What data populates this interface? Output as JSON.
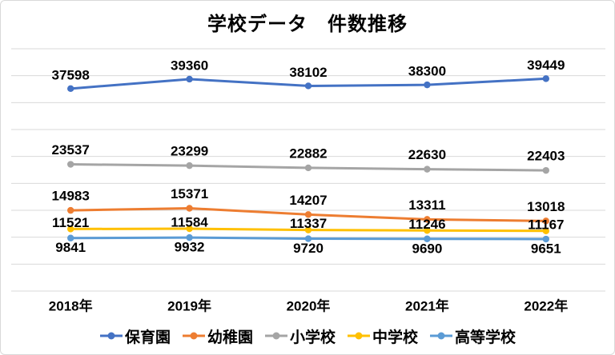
{
  "chart_data": {
    "type": "line",
    "title": "学校データ　件数推移",
    "categories": [
      "2018年",
      "2019年",
      "2020年",
      "2021年",
      "2022年"
    ],
    "series": [
      {
        "name": "保育園",
        "color": "#4472c4",
        "values": [
          37598,
          39360,
          38102,
          38300,
          39449
        ],
        "label_offset": -17
      },
      {
        "name": "幼稚園",
        "color": "#ed7d31",
        "values": [
          14983,
          15371,
          14207,
          13311,
          13018
        ],
        "label_offset": -18
      },
      {
        "name": "小学校",
        "color": "#a5a5a5",
        "values": [
          23537,
          23299,
          22882,
          22630,
          22403
        ],
        "label_offset": -18
      },
      {
        "name": "中学校",
        "color": "#ffc000",
        "values": [
          11521,
          11584,
          11337,
          11246,
          11167
        ],
        "label_offset": -8
      },
      {
        "name": "高等学校",
        "color": "#5b9bd5",
        "values": [
          9841,
          9932,
          9720,
          9690,
          9651
        ],
        "label_offset": 12
      }
    ],
    "ylim": [
      0,
      45000
    ],
    "grid_step": 5000,
    "grid": "on",
    "y_axis_tick_labels": "hidden",
    "data_labels": "on",
    "legend_position": "bottom",
    "grid_color": "#d9d9d9",
    "text_color": "#000000",
    "background_color": "#ffffff"
  }
}
